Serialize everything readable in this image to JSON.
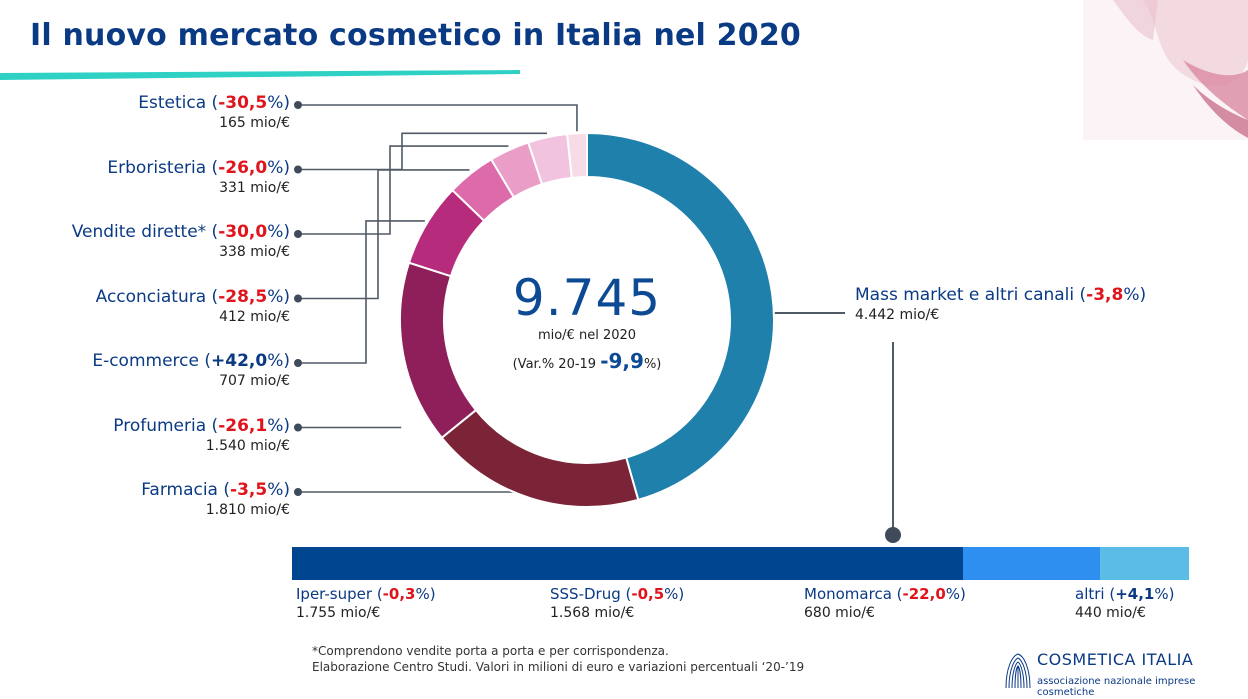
{
  "page": {
    "title": "Il nuovo mercato cosmetico in Italia nel 2020",
    "footnote_1": "*Comprendono vendite porta a porta e per corrispondenza.",
    "footnote_2": "Elaborazione Centro Studi. Valori in milioni di euro e variazioni percentuali ‘20-’19",
    "logo_name": "COSMETICA ITALIA",
    "logo_subtitle": "associazione nazionale imprese cosmetiche"
  },
  "colors": {
    "title": "#0b3a84",
    "negative": "#e0141c",
    "accent_bar": "#2ed1c4"
  },
  "center": {
    "total": "9.745",
    "unit": "mio/€ nel 2020",
    "var_prefix": "(Var.% 20-19 ",
    "var_value": "-9,9",
    "var_suffix": "%)"
  },
  "chart_data": [
    {
      "type": "pie",
      "variant": "donut",
      "unit": "mio/€",
      "series": [
        {
          "name": "Mass market e altri canali",
          "change": "-3,8",
          "value": 4442,
          "value_label": "4.442 mio/€",
          "color": "#1f80ab"
        },
        {
          "name": "Farmacia",
          "change": "-3,5",
          "value": 1810,
          "value_label": "1.810 mio/€",
          "color": "#7b2438"
        },
        {
          "name": "Profumeria",
          "change": "-26,1",
          "value": 1540,
          "value_label": "1.540 mio/€",
          "color": "#8e1f5b"
        },
        {
          "name": "E-commerce",
          "change": "+42,0",
          "value": 707,
          "value_label": "707 mio/€",
          "color": "#b72b7d"
        },
        {
          "name": "Acconciatura",
          "change": "-28,5",
          "value": 412,
          "value_label": "412 mio/€",
          "color": "#dd6aa9"
        },
        {
          "name": "Vendite dirette*",
          "change": "-30,0",
          "value": 338,
          "value_label": "338 mio/€",
          "color": "#e99dc7"
        },
        {
          "name": "Erboristeria",
          "change": "-26,0",
          "value": 331,
          "value_label": "331 mio/€",
          "color": "#f1c3df"
        },
        {
          "name": "Estetica",
          "change": "-30,5",
          "value": 165,
          "value_label": "165 mio/€",
          "color": "#f7dbe7"
        }
      ]
    },
    {
      "type": "bar",
      "variant": "stacked-horizontal",
      "parent": "Mass market e altri canali",
      "unit": "mio/€",
      "series": [
        {
          "name": "Iper-super",
          "change": "-0,3",
          "value": 1755,
          "value_label": "1.755 mio/€",
          "color": "#00458f"
        },
        {
          "name": "SSS-Drug",
          "change": "-0,5",
          "value": 1568,
          "value_label": "1.568 mio/€",
          "color": "#00458f"
        },
        {
          "name": "Monomarca",
          "change": "-22,0",
          "value": 680,
          "value_label": "680 mio/€",
          "color": "#2e8ff0"
        },
        {
          "name": "altri",
          "change": "+4,1",
          "value": 440,
          "value_label": "440 mio/€",
          "color": "#5bbde6"
        }
      ]
    }
  ]
}
